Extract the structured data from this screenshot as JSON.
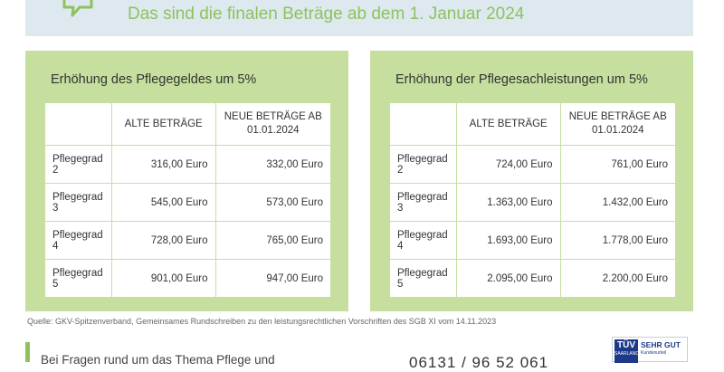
{
  "header": {
    "title": "Das sind die finalen Beträge ab dem 1. Januar 2024",
    "icon": "speech-bubble-icon",
    "accent_color": "#8ec25f"
  },
  "left_panel": {
    "title": "Erhöhung des Pflegegeldes um 5%",
    "columns": [
      "",
      "ALTE BETRÄGE",
      "NEUE BETRÄGE AB 01.01.2024"
    ],
    "rows": [
      {
        "label": "Pflegegrad 2",
        "old": "316,00 Euro",
        "new": "332,00 Euro"
      },
      {
        "label": "Pflegegrad 3",
        "old": "545,00 Euro",
        "new": "573,00 Euro"
      },
      {
        "label": "Pflegegrad 4",
        "old": "728,00 Euro",
        "new": "765,00 Euro"
      },
      {
        "label": "Pflegegrad 5",
        "old": "901,00 Euro",
        "new": "947,00 Euro"
      }
    ]
  },
  "right_panel": {
    "title": "Erhöhung der Pflegesachleistungen um 5%",
    "columns": [
      "",
      "ALTE BETRÄGE",
      "NEUE BETRÄGE AB 01.01.2024"
    ],
    "rows": [
      {
        "label": "Pflegegrad 2",
        "old": "724,00 Euro",
        "new": "761,00 Euro"
      },
      {
        "label": "Pflegegrad 3",
        "old": "1.363,00 Euro",
        "new": "1.432,00 Euro"
      },
      {
        "label": "Pflegegrad 4",
        "old": "1.693,00 Euro",
        "new": "1.778,00 Euro"
      },
      {
        "label": "Pflegegrad 5",
        "old": "2.095,00 Euro",
        "new": "2.200,00 Euro"
      }
    ]
  },
  "source": "Quelle: GKV-Spitzenverband, Gemeinsames Rundschreiben zu den leistungsrechtlichen Vorschriften des SGB XI vom 14.11.2023",
  "footer": {
    "text": "Bei Fragen rund um das Thema Pflege und",
    "phone": "06131 / 96 52 061",
    "badge": {
      "logo": "TÜV",
      "logo_sub": "SAARLAND",
      "rating": "SEHR GUT",
      "small": "Kundenurteil"
    }
  }
}
